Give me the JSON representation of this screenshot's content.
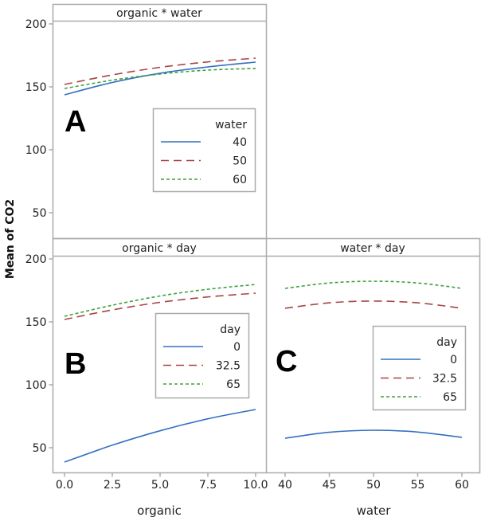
{
  "chart_data": [
    {
      "type": "line",
      "panel": "A",
      "title": "organic * water",
      "xlabel": "organic",
      "ylabel": "Mean of CO2",
      "xlim": [
        0,
        10
      ],
      "ylim": [
        30,
        202
      ],
      "yticks": [
        50,
        100,
        150,
        200
      ],
      "xticks": [],
      "legend_title": "water",
      "legend_position": "center-right",
      "series": [
        {
          "name": "40",
          "style": "solid",
          "color": "#3370c0",
          "x": [
            0,
            2.5,
            5,
            7.5,
            10
          ],
          "values": [
            143.7,
            153.5,
            160.8,
            165.8,
            169.6
          ]
        },
        {
          "name": "50",
          "style": "longdash",
          "color": "#a94444",
          "x": [
            0,
            2.5,
            5,
            7.5,
            10
          ],
          "values": [
            151.9,
            159.5,
            165.5,
            169.8,
            172.8
          ]
        },
        {
          "name": "60",
          "style": "shortdash",
          "color": "#40a040",
          "x": [
            0,
            2.5,
            5,
            7.5,
            10
          ],
          "values": [
            148.7,
            155.3,
            160.2,
            163.3,
            164.6
          ]
        }
      ]
    },
    {
      "type": "line",
      "panel": "B",
      "title": "organic * day",
      "xlabel": "organic",
      "ylabel": "Mean of CO2",
      "xlim": [
        -0.6,
        10.6
      ],
      "ylim": [
        30,
        202
      ],
      "yticks": [
        50,
        100,
        150,
        200
      ],
      "xticks": [
        "0.0",
        "2.5",
        "5.0",
        "7.5",
        "10.0"
      ],
      "legend_title": "day",
      "legend_position": "center-right",
      "series": [
        {
          "name": "0",
          "style": "solid",
          "color": "#3370c0",
          "x": [
            0,
            2.5,
            5,
            7.5,
            10
          ],
          "values": [
            38.6,
            52.0,
            63.5,
            73.0,
            80.4
          ]
        },
        {
          "name": "32.5",
          "style": "longdash",
          "color": "#a94444",
          "x": [
            0,
            2.5,
            5,
            7.5,
            10
          ],
          "values": [
            151.9,
            159.5,
            165.5,
            169.8,
            172.8
          ]
        },
        {
          "name": "65",
          "style": "shortdash",
          "color": "#40a040",
          "x": [
            0,
            2.5,
            5,
            7.5,
            10
          ],
          "values": [
            154.4,
            163.2,
            170.6,
            175.9,
            179.7
          ]
        }
      ]
    },
    {
      "type": "line",
      "panel": "C",
      "title": "water * day",
      "xlabel": "water",
      "ylabel": "",
      "xlim": [
        38,
        62
      ],
      "ylim": [
        30,
        202
      ],
      "yticks": [],
      "xticks": [
        "40",
        "45",
        "50",
        "55",
        "60"
      ],
      "legend_title": "day",
      "legend_position": "center-right",
      "series": [
        {
          "name": "0",
          "style": "solid",
          "color": "#3370c0",
          "x": [
            40,
            45,
            50,
            55,
            60
          ],
          "values": [
            57.6,
            62.3,
            63.9,
            62.5,
            58.2
          ]
        },
        {
          "name": "32.5",
          "style": "longdash",
          "color": "#a94444",
          "x": [
            40,
            45,
            50,
            55,
            60
          ],
          "values": [
            160.8,
            165.1,
            166.5,
            165.1,
            160.8
          ]
        },
        {
          "name": "65",
          "style": "shortdash",
          "color": "#40a040",
          "x": [
            40,
            45,
            50,
            55,
            60
          ],
          "values": [
            176.6,
            180.9,
            182.3,
            180.9,
            176.6
          ]
        }
      ]
    }
  ],
  "labels": {
    "ylabel": "Mean of CO2",
    "xlabel_left": "organic",
    "xlabel_right": "water",
    "panel_a": "A",
    "panel_b": "B",
    "panel_c": "C"
  }
}
